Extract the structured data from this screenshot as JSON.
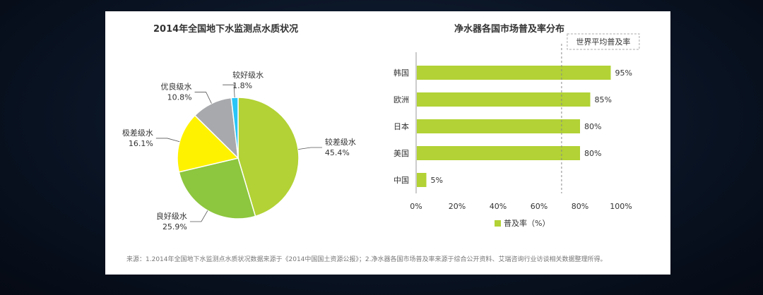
{
  "chart_data": [
    {
      "type": "pie",
      "title": "2014年全国地下水监测点水质状况",
      "slices": [
        {
          "label": "较差级水",
          "value": 45.4,
          "display": "45.4%",
          "color": "#b2d235"
        },
        {
          "label": "良好级水",
          "value": 25.9,
          "display": "25.9%",
          "color": "#8dc63f"
        },
        {
          "label": "极差级水",
          "value": 16.1,
          "display": "16.1%",
          "color": "#fff200"
        },
        {
          "label": "优良级水",
          "value": 10.8,
          "display": "10.8%",
          "color": "#a7a9ac"
        },
        {
          "label": "较好级水",
          "value": 1.8,
          "display": "1.8%",
          "color": "#29c5f6"
        }
      ]
    },
    {
      "type": "bar",
      "orientation": "horizontal",
      "title": "净水器各国市场普及率分布",
      "categories": [
        "韩国",
        "欧洲",
        "日本",
        "美国",
        "中国"
      ],
      "values": [
        95,
        85,
        80,
        80,
        5
      ],
      "value_labels": [
        "95%",
        "85%",
        "80%",
        "80%",
        "5%"
      ],
      "xlim": [
        0,
        100
      ],
      "xticks": [
        "0%",
        "20%",
        "40%",
        "60%",
        "80%",
        "100%"
      ],
      "bar_color": "#b2d235",
      "legend": {
        "label": "普及率（%）",
        "position": "bottom"
      },
      "reference_line": {
        "value": 71,
        "label": "世界平均普及率"
      }
    }
  ],
  "source_note": "来源：1.2014年全国地下水监测点水质状况数据来源于《2014中国国土资源公报》；2.净水器各国市场普及率来源于综合公开资料、艾瑞咨询行业访谈相关数据整理所得。"
}
